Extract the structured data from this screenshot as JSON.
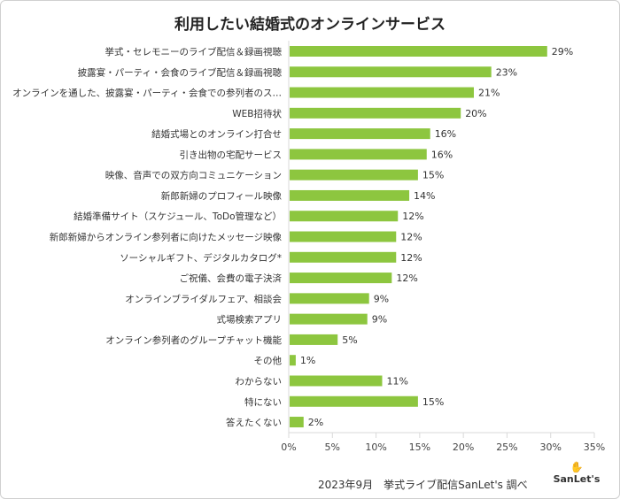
{
  "chart_data": {
    "type": "bar",
    "orientation": "horizontal",
    "title": "利用したい結婚式のオンラインサービス",
    "categories": [
      "挙式・セレモニーのライブ配信＆録画視聴",
      "披露宴・パーティ・会食のライブ配信＆録画視聴",
      "オンラインを通した、披露宴・パーティ・会食での参列者のス…",
      "WEB招待状",
      "結婚式場とのオンライン打合せ",
      "引き出物の宅配サービス",
      "映像、音声での双方向コミュニケーション",
      "新郎新婦のプロフィール映像",
      "結婚準備サイト（スケジュール、ToDo管理など）",
      "新郎新婦からオンライン参列者に向けたメッセージ映像",
      "ソーシャルギフト、デジタルカタログ*",
      "ご祝儀、会費の電子決済",
      "オンラインブライダルフェア、相談会",
      "式場検索アプリ",
      "オンライン参列者のグループチャット機能",
      "その他",
      "わからない",
      "特にない",
      "答えたくない"
    ],
    "values": [
      29.5,
      23.1,
      21.1,
      19.6,
      16.1,
      15.7,
      14.7,
      13.7,
      12.4,
      12.2,
      12.2,
      11.7,
      9.1,
      8.9,
      5.5,
      0.7,
      10.6,
      14.7,
      1.6
    ],
    "data_labels": [
      "29%",
      "23%",
      "21%",
      "20%",
      "16%",
      "16%",
      "15%",
      "14%",
      "12%",
      "12%",
      "12%",
      "12%",
      "9%",
      "9%",
      "5%",
      "1%",
      "11%",
      "15%",
      "2%"
    ],
    "xlim": [
      0,
      35
    ],
    "xticks": [
      "0%",
      "5%",
      "10%",
      "15%",
      "20%",
      "25%",
      "30%",
      "35%"
    ],
    "xlabel": "",
    "ylabel": "",
    "grid": false,
    "bar_color": "#8dc63f"
  },
  "footer": {
    "source": "2023年9月　挙式ライブ配信SanLet's 調べ",
    "logo_text": "SanLet's"
  }
}
